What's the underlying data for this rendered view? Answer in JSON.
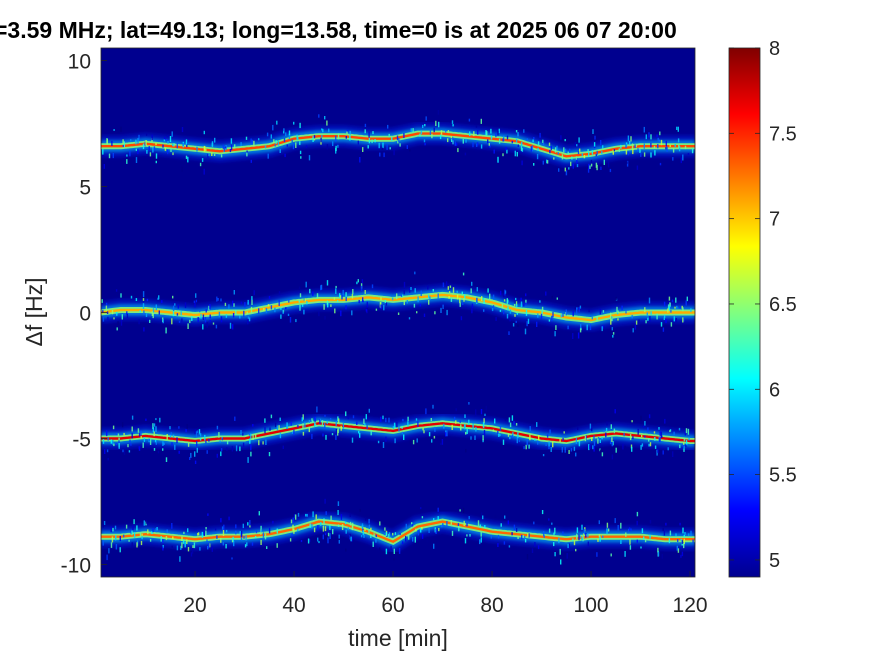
{
  "chart_data": {
    "type": "heatmap",
    "title": "=3.59 MHz;  lat=49.13; long=13.58, time=0 is at 2025 06 07 20:00",
    "xlabel": "time [min]",
    "ylabel": "Δf [Hz]",
    "xlim": [
      1,
      121
    ],
    "ylim": [
      -10.5,
      10.5
    ],
    "x_ticks": [
      20,
      40,
      60,
      80,
      100,
      120
    ],
    "y_ticks": [
      -10,
      -5,
      0,
      5,
      10
    ],
    "grid": false,
    "colormap": "jet",
    "background_color": "#00008f",
    "colorbar": {
      "range": [
        4.9,
        8
      ],
      "ticks": [
        5,
        5.5,
        6,
        6.5,
        7,
        7.5,
        8
      ]
    },
    "series": [
      {
        "x": [
          1,
          5,
          10,
          15,
          20,
          25,
          30,
          35,
          40,
          45,
          50,
          55,
          60,
          65,
          70,
          75,
          80,
          85,
          90,
          95,
          100,
          105,
          110,
          115,
          120
        ],
        "values": [
          6.6,
          6.6,
          6.7,
          6.6,
          6.5,
          6.4,
          6.5,
          6.6,
          6.9,
          7.0,
          7.0,
          6.9,
          6.9,
          7.1,
          7.1,
          7.0,
          6.9,
          6.8,
          6.5,
          6.2,
          6.3,
          6.5,
          6.6,
          6.6,
          6.6
        ],
        "intensity": 7.4
      },
      {
        "x": [
          1,
          5,
          10,
          15,
          20,
          25,
          30,
          35,
          40,
          45,
          50,
          55,
          60,
          65,
          70,
          75,
          80,
          85,
          90,
          95,
          100,
          105,
          110,
          115,
          120
        ],
        "values": [
          0.0,
          0.1,
          0.1,
          0.0,
          -0.1,
          0.0,
          0.0,
          0.2,
          0.4,
          0.5,
          0.5,
          0.6,
          0.5,
          0.6,
          0.7,
          0.6,
          0.4,
          0.1,
          0.0,
          -0.2,
          -0.3,
          -0.1,
          0.0,
          0.0,
          0.0
        ],
        "intensity": 7.1
      },
      {
        "x": [
          1,
          5,
          10,
          15,
          20,
          25,
          30,
          35,
          40,
          45,
          50,
          55,
          60,
          65,
          70,
          75,
          80,
          85,
          90,
          95,
          100,
          105,
          110,
          115,
          120
        ],
        "values": [
          -5.0,
          -5.0,
          -4.9,
          -5.0,
          -5.1,
          -5.0,
          -5.0,
          -4.8,
          -4.6,
          -4.4,
          -4.5,
          -4.6,
          -4.7,
          -4.5,
          -4.4,
          -4.5,
          -4.6,
          -4.8,
          -5.0,
          -5.1,
          -4.9,
          -4.8,
          -4.9,
          -5.0,
          -5.1
        ],
        "intensity": 7.7
      },
      {
        "x": [
          1,
          5,
          10,
          15,
          20,
          25,
          30,
          35,
          40,
          45,
          50,
          55,
          60,
          65,
          70,
          75,
          80,
          85,
          90,
          95,
          100,
          105,
          110,
          115,
          120
        ],
        "values": [
          -8.9,
          -8.9,
          -8.8,
          -8.9,
          -9.0,
          -8.9,
          -8.9,
          -8.8,
          -8.6,
          -8.3,
          -8.4,
          -8.7,
          -9.1,
          -8.5,
          -8.3,
          -8.5,
          -8.7,
          -8.8,
          -8.9,
          -9.0,
          -8.9,
          -8.9,
          -8.9,
          -9.0,
          -9.0
        ],
        "intensity": 7.3
      }
    ]
  }
}
